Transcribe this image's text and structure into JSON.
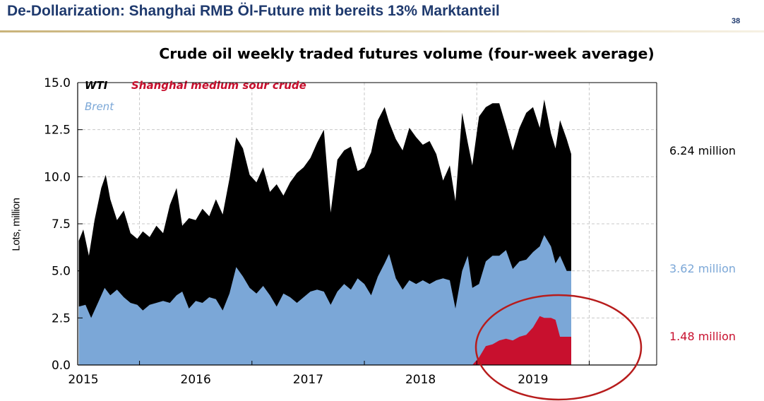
{
  "slide": {
    "title": "De-Dollarization: Shanghai RMB Öl-Future mit bereits 13% Marktanteil",
    "page_number": "38"
  },
  "colors": {
    "wti": "#000000",
    "brent": "#7ba7d7",
    "shanghai": "#c8102e",
    "highlight_circle": "#b71c1c",
    "grid": "#c8c8c8",
    "slide_title": "#1f3a6e"
  },
  "chart_data": {
    "type": "area",
    "stacked": true,
    "title": "Crude oil weekly traded futures volume (four-week average)",
    "xlabel": "",
    "ylabel": "Lots, million",
    "xlim": [
      2014.45,
      2019.6
    ],
    "ylim": [
      0,
      15
    ],
    "y_ticks": [
      "0.0",
      "2.5",
      "5.0",
      "7.5",
      "10.0",
      "12.5",
      "15.0"
    ],
    "x_ticks": [
      {
        "value": 2015,
        "label": "2015"
      },
      {
        "value": 2016,
        "label": "2016"
      },
      {
        "value": 2017,
        "label": "2017"
      },
      {
        "value": 2018,
        "label": "2018"
      },
      {
        "value": 2019,
        "label": "2019"
      }
    ],
    "grid": true,
    "legend_position": "top-left",
    "series": [
      {
        "name": "Brent",
        "color": "#7ba7d7",
        "points": [
          [
            2014.46,
            3.1
          ],
          [
            2014.52,
            3.2
          ],
          [
            2014.57,
            2.5
          ],
          [
            2014.63,
            3.3
          ],
          [
            2014.69,
            4.1
          ],
          [
            2014.74,
            3.7
          ],
          [
            2014.8,
            4.0
          ],
          [
            2014.86,
            3.6
          ],
          [
            2014.92,
            3.3
          ],
          [
            2014.98,
            3.2
          ],
          [
            2015.03,
            2.9
          ],
          [
            2015.09,
            3.2
          ],
          [
            2015.15,
            3.3
          ],
          [
            2015.21,
            3.4
          ],
          [
            2015.27,
            3.3
          ],
          [
            2015.33,
            3.7
          ],
          [
            2015.38,
            3.9
          ],
          [
            2015.44,
            3.0
          ],
          [
            2015.5,
            3.4
          ],
          [
            2015.56,
            3.3
          ],
          [
            2015.62,
            3.6
          ],
          [
            2015.68,
            3.5
          ],
          [
            2015.74,
            2.9
          ],
          [
            2015.8,
            3.8
          ],
          [
            2015.86,
            5.2
          ],
          [
            2015.92,
            4.7
          ],
          [
            2015.98,
            4.1
          ],
          [
            2016.04,
            3.8
          ],
          [
            2016.1,
            4.2
          ],
          [
            2016.16,
            3.7
          ],
          [
            2016.22,
            3.1
          ],
          [
            2016.28,
            3.8
          ],
          [
            2016.34,
            3.6
          ],
          [
            2016.4,
            3.3
          ],
          [
            2016.46,
            3.6
          ],
          [
            2016.52,
            3.9
          ],
          [
            2016.58,
            4.0
          ],
          [
            2016.64,
            3.9
          ],
          [
            2016.7,
            3.2
          ],
          [
            2016.76,
            3.9
          ],
          [
            2016.82,
            4.3
          ],
          [
            2016.88,
            4.0
          ],
          [
            2016.94,
            4.6
          ],
          [
            2017.0,
            4.3
          ],
          [
            2017.06,
            3.7
          ],
          [
            2017.12,
            4.7
          ],
          [
            2017.18,
            5.4
          ],
          [
            2017.22,
            5.9
          ],
          [
            2017.28,
            4.6
          ],
          [
            2017.34,
            4.0
          ],
          [
            2017.4,
            4.5
          ],
          [
            2017.46,
            4.3
          ],
          [
            2017.52,
            4.5
          ],
          [
            2017.58,
            4.3
          ],
          [
            2017.64,
            4.5
          ],
          [
            2017.7,
            4.6
          ],
          [
            2017.76,
            4.5
          ],
          [
            2017.81,
            3.0
          ],
          [
            2017.87,
            5.0
          ],
          [
            2017.92,
            5.8
          ],
          [
            2017.96,
            4.1
          ],
          [
            2018.02,
            4.3
          ],
          [
            2018.08,
            5.5
          ],
          [
            2018.14,
            5.8
          ],
          [
            2018.2,
            5.8
          ],
          [
            2018.26,
            6.1
          ],
          [
            2018.32,
            5.1
          ],
          [
            2018.38,
            5.5
          ],
          [
            2018.44,
            5.6
          ],
          [
            2018.5,
            6.0
          ],
          [
            2018.56,
            6.3
          ],
          [
            2018.6,
            6.9
          ],
          [
            2018.66,
            6.3
          ],
          [
            2018.7,
            5.4
          ],
          [
            2018.74,
            5.8
          ],
          [
            2018.8,
            5.0
          ],
          [
            2018.84,
            5.0
          ]
        ]
      },
      {
        "name": "WTI",
        "color": "#000000",
        "points": [
          [
            2014.46,
            6.6
          ],
          [
            2014.5,
            7.2
          ],
          [
            2014.55,
            5.8
          ],
          [
            2014.6,
            7.7
          ],
          [
            2014.66,
            9.4
          ],
          [
            2014.7,
            10.1
          ],
          [
            2014.74,
            8.8
          ],
          [
            2014.8,
            7.7
          ],
          [
            2014.86,
            8.2
          ],
          [
            2014.92,
            7.0
          ],
          [
            2014.98,
            6.7
          ],
          [
            2015.03,
            7.1
          ],
          [
            2015.09,
            6.8
          ],
          [
            2015.15,
            7.4
          ],
          [
            2015.21,
            7.0
          ],
          [
            2015.27,
            8.5
          ],
          [
            2015.33,
            9.4
          ],
          [
            2015.38,
            7.4
          ],
          [
            2015.44,
            7.8
          ],
          [
            2015.5,
            7.7
          ],
          [
            2015.56,
            8.3
          ],
          [
            2015.62,
            7.9
          ],
          [
            2015.68,
            8.8
          ],
          [
            2015.74,
            8.0
          ],
          [
            2015.8,
            9.9
          ],
          [
            2015.86,
            12.1
          ],
          [
            2015.92,
            11.5
          ],
          [
            2015.98,
            10.1
          ],
          [
            2016.04,
            9.7
          ],
          [
            2016.1,
            10.5
          ],
          [
            2016.16,
            9.2
          ],
          [
            2016.22,
            9.6
          ],
          [
            2016.28,
            9.0
          ],
          [
            2016.34,
            9.7
          ],
          [
            2016.4,
            10.2
          ],
          [
            2016.46,
            10.5
          ],
          [
            2016.52,
            11.0
          ],
          [
            2016.58,
            11.8
          ],
          [
            2016.64,
            12.5
          ],
          [
            2016.7,
            8.1
          ],
          [
            2016.76,
            10.9
          ],
          [
            2016.82,
            11.4
          ],
          [
            2016.88,
            11.6
          ],
          [
            2016.94,
            10.3
          ],
          [
            2017.0,
            10.5
          ],
          [
            2017.06,
            11.3
          ],
          [
            2017.12,
            13.0
          ],
          [
            2017.18,
            13.7
          ],
          [
            2017.22,
            12.9
          ],
          [
            2017.28,
            12.0
          ],
          [
            2017.34,
            11.4
          ],
          [
            2017.4,
            12.6
          ],
          [
            2017.46,
            12.1
          ],
          [
            2017.52,
            11.7
          ],
          [
            2017.58,
            11.9
          ],
          [
            2017.64,
            11.2
          ],
          [
            2017.7,
            9.8
          ],
          [
            2017.76,
            10.6
          ],
          [
            2017.81,
            8.7
          ],
          [
            2017.87,
            13.4
          ],
          [
            2017.92,
            11.8
          ],
          [
            2017.96,
            10.6
          ],
          [
            2018.02,
            13.2
          ],
          [
            2018.08,
            13.7
          ],
          [
            2018.14,
            13.9
          ],
          [
            2018.2,
            13.9
          ],
          [
            2018.26,
            12.7
          ],
          [
            2018.32,
            11.4
          ],
          [
            2018.38,
            12.6
          ],
          [
            2018.44,
            13.4
          ],
          [
            2018.5,
            13.7
          ],
          [
            2018.56,
            12.6
          ],
          [
            2018.6,
            14.1
          ],
          [
            2018.66,
            12.3
          ],
          [
            2018.7,
            11.5
          ],
          [
            2018.74,
            13.0
          ],
          [
            2018.8,
            12.0
          ],
          [
            2018.84,
            11.2
          ]
        ]
      },
      {
        "name": "Shanghai medium sour crude",
        "color": "#c8102e",
        "points": [
          [
            2017.96,
            0.0
          ],
          [
            2018.02,
            0.4
          ],
          [
            2018.08,
            1.0
          ],
          [
            2018.14,
            1.1
          ],
          [
            2018.2,
            1.3
          ],
          [
            2018.26,
            1.4
          ],
          [
            2018.32,
            1.3
          ],
          [
            2018.38,
            1.5
          ],
          [
            2018.44,
            1.6
          ],
          [
            2018.5,
            2.0
          ],
          [
            2018.56,
            2.6
          ],
          [
            2018.6,
            2.5
          ],
          [
            2018.66,
            2.5
          ],
          [
            2018.7,
            2.4
          ],
          [
            2018.74,
            1.5
          ],
          [
            2018.8,
            1.5
          ],
          [
            2018.84,
            1.5
          ]
        ]
      }
    ],
    "end_labels": [
      {
        "series": "WTI",
        "text": "6.24 million",
        "color": "#000000"
      },
      {
        "series": "Brent",
        "text": "3.62 million",
        "color": "#7ba7d7"
      },
      {
        "series": "Shanghai medium sour crude",
        "text": "1.48 million",
        "color": "#c8102e"
      }
    ],
    "annotations": [
      {
        "type": "ellipse",
        "description": "highlight around Shanghai series",
        "color": "#b71c1c"
      }
    ]
  }
}
